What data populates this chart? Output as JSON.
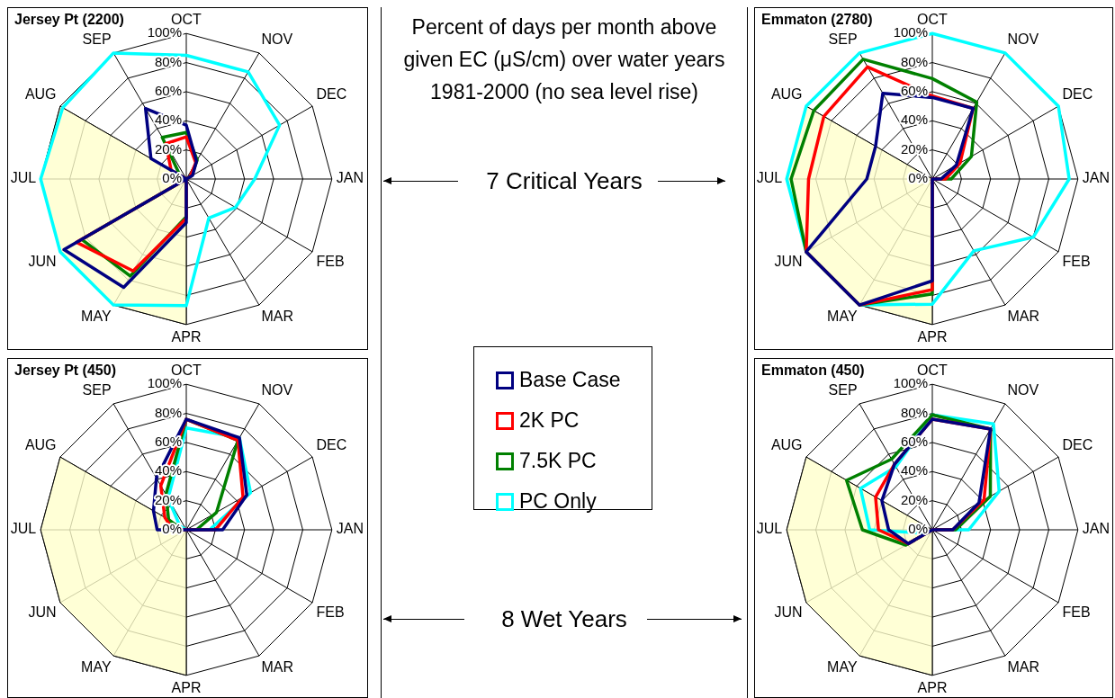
{
  "chart_data": [
    {
      "type": "radar",
      "title": "Jersey Pt (2200)",
      "categories": [
        "OCT",
        "NOV",
        "DEC",
        "JAN",
        "FEB",
        "MAR",
        "APR",
        "MAY",
        "JUN",
        "JUL",
        "AUG",
        "SEP"
      ],
      "ylim": [
        0,
        100
      ],
      "yticks": [
        {
          "value": 0,
          "label": "0%"
        },
        {
          "value": 20,
          "label": "20%"
        },
        {
          "value": 40,
          "label": "40%"
        },
        {
          "value": 60,
          "label": "60%"
        },
        {
          "value": 80,
          "label": "80%"
        },
        {
          "value": 100,
          "label": "100%"
        }
      ],
      "grid": true,
      "legend": "right",
      "series": [
        {
          "type": "area",
          "color": "#ffffcc",
          "values": [
            0,
            0,
            0,
            0,
            0,
            0,
            100,
            100,
            100,
            100,
            100,
            0
          ]
        },
        {
          "name": "Base Case",
          "color": "#000080",
          "values": [
            37,
            14,
            5,
            0,
            0,
            0,
            30,
            86,
            97,
            0,
            28,
            56
          ]
        },
        {
          "name": "2K PC",
          "color": "#ff0000",
          "values": [
            29,
            13,
            3,
            0,
            0,
            0,
            27,
            73,
            87,
            0,
            12,
            28
          ]
        },
        {
          "name": "7.5K PC",
          "color": "#008000",
          "values": [
            32,
            15,
            4,
            0,
            0,
            0,
            26,
            77,
            83,
            0,
            5,
            33
          ]
        },
        {
          "name": "PC Only",
          "color": "#00ffff",
          "values": [
            85,
            85,
            74,
            47,
            39,
            31,
            87,
            100,
            100,
            100,
            98,
            100
          ]
        }
      ]
    },
    {
      "type": "radar",
      "title": "Emmaton (2780)",
      "categories": [
        "OCT",
        "NOV",
        "DEC",
        "JAN",
        "FEB",
        "MAR",
        "APR",
        "MAY",
        "JUN",
        "JUL",
        "AUG",
        "SEP"
      ],
      "ylim": [
        0,
        100
      ],
      "yticks": [
        {
          "value": 0,
          "label": "0%"
        },
        {
          "value": 20,
          "label": "20%"
        },
        {
          "value": 40,
          "label": "40%"
        },
        {
          "value": 60,
          "label": "60%"
        },
        {
          "value": 80,
          "label": "80%"
        },
        {
          "value": 100,
          "label": "100%"
        }
      ],
      "grid": true,
      "series": [
        {
          "type": "area",
          "color": "#ffffcc",
          "values": [
            0,
            0,
            0,
            0,
            0,
            0,
            100,
            100,
            100,
            100,
            100,
            0
          ]
        },
        {
          "color": "#000080",
          "values": [
            56,
            56,
            19,
            6,
            0,
            0,
            70,
            100,
            100,
            45,
            45,
            68
          ]
        },
        {
          "color": "#ff0000",
          "values": [
            57,
            56,
            22,
            9,
            0,
            0,
            76,
            100,
            100,
            85,
            86,
            89
          ]
        },
        {
          "color": "#008000",
          "values": [
            69,
            61,
            31,
            13,
            0,
            0,
            79,
            100,
            100,
            97,
            94,
            95
          ]
        },
        {
          "color": "#00ffff",
          "values": [
            100,
            100,
            100,
            94,
            80,
            57,
            86,
            100,
            100,
            100,
            100,
            100
          ]
        }
      ]
    },
    {
      "type": "radar",
      "title": "Jersey Pt (450)",
      "categories": [
        "OCT",
        "NOV",
        "DEC",
        "JAN",
        "FEB",
        "MAR",
        "APR",
        "MAY",
        "JUN",
        "JUL",
        "AUG",
        "SEP"
      ],
      "ylim": [
        0,
        100
      ],
      "yticks": [
        {
          "value": 0,
          "label": "0%"
        },
        {
          "value": 20,
          "label": "20%"
        },
        {
          "value": 40,
          "label": "40%"
        },
        {
          "value": 60,
          "label": "60%"
        },
        {
          "value": 80,
          "label": "80%"
        },
        {
          "value": 100,
          "label": "100%"
        }
      ],
      "grid": true,
      "series": [
        {
          "type": "area",
          "color": "#ffffcc",
          "values": [
            0,
            0,
            0,
            0,
            0,
            0,
            100,
            100,
            100,
            100,
            100,
            0
          ]
        },
        {
          "color": "#000080",
          "values": [
            76,
            73,
            48,
            25,
            0,
            0,
            0,
            0,
            0,
            20,
            26,
            41
          ]
        },
        {
          "color": "#ff0000",
          "values": [
            76,
            71,
            45,
            20,
            0,
            0,
            0,
            0,
            0,
            9,
            17,
            35
          ]
        },
        {
          "color": "#008000",
          "values": [
            76,
            71,
            24,
            7,
            0,
            0,
            0,
            0,
            0,
            3,
            14,
            28
          ]
        },
        {
          "color": "#00ffff",
          "values": [
            70,
            73,
            51,
            16,
            0,
            0,
            0,
            0,
            0,
            0,
            5,
            25
          ]
        }
      ]
    },
    {
      "type": "radar",
      "title": "Emmaton (450)",
      "categories": [
        "OCT",
        "NOV",
        "DEC",
        "JAN",
        "FEB",
        "MAR",
        "APR",
        "MAY",
        "JUN",
        "JUL",
        "AUG",
        "SEP"
      ],
      "ylim": [
        0,
        100
      ],
      "yticks": [
        {
          "value": 0,
          "label": "0%"
        },
        {
          "value": 20,
          "label": "20%"
        },
        {
          "value": 40,
          "label": "40%"
        },
        {
          "value": 60,
          "label": "60%"
        },
        {
          "value": 80,
          "label": "80%"
        },
        {
          "value": 100,
          "label": "100%"
        }
      ],
      "grid": true,
      "series": [
        {
          "type": "area",
          "color": "#ffffcc",
          "values": [
            0,
            0,
            0,
            0,
            0,
            0,
            100,
            100,
            100,
            100,
            100,
            0
          ]
        },
        {
          "color": "#000080",
          "values": [
            76,
            80,
            37,
            14,
            0,
            0,
            0,
            0,
            19,
            30,
            40,
            52
          ]
        },
        {
          "color": "#ff0000",
          "values": [
            76,
            80,
            41,
            14,
            0,
            0,
            0,
            0,
            19,
            37,
            45,
            52
          ]
        },
        {
          "color": "#008000",
          "values": [
            79,
            80,
            46,
            16,
            0,
            0,
            0,
            0,
            21,
            48,
            68,
            56
          ]
        },
        {
          "color": "#00ffff",
          "values": [
            79,
            84,
            53,
            25,
            0,
            0,
            0,
            0,
            5,
            43,
            57,
            50
          ]
        }
      ]
    },
    {
      "type": "other",
      "title": "Percent of days per month above given EC (μS/cm) over water years 1981-2000 (no sea level rise)",
      "annotations": [
        "7 Critical Years",
        "8 Wet Years"
      ]
    }
  ]
}
